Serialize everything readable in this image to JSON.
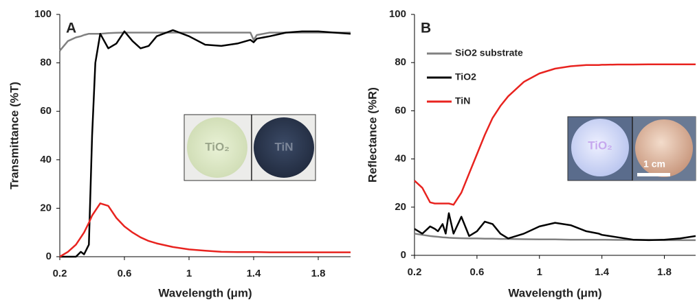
{
  "chart_data": [
    {
      "type": "line",
      "title": "A",
      "x_label": "Wavelength (μm)",
      "y_label": "Transmittance (%T)",
      "x": [
        0.2,
        0.25,
        0.3,
        0.33,
        0.35,
        0.38,
        0.4,
        0.42,
        0.45,
        0.5,
        0.55,
        0.6,
        0.65,
        0.7,
        0.75,
        0.8,
        0.9,
        1.0,
        1.1,
        1.2,
        1.3,
        1.38,
        1.4,
        1.42,
        1.5,
        1.6,
        1.7,
        1.8,
        1.9,
        2.0
      ],
      "series": [
        {
          "color": "#808080",
          "values": [
            85,
            89,
            90.5,
            91,
            91.5,
            92,
            92,
            92,
            92,
            92.3,
            92.4,
            92.5,
            92.5,
            92.5,
            92.5,
            92.5,
            92.5,
            92.5,
            92.5,
            92.5,
            92.5,
            92.5,
            89.5,
            91.5,
            92.5,
            92.5,
            92.5,
            92.5,
            92.5,
            92.5
          ]
        },
        {
          "color": "#000000",
          "values": [
            0,
            0,
            0,
            2,
            1,
            5,
            50,
            80,
            92,
            86,
            88,
            93,
            89,
            86,
            87,
            91,
            93.5,
            91,
            87.5,
            87,
            88,
            89.5,
            88.5,
            90,
            91,
            92.5,
            93,
            93,
            92.5,
            92
          ]
        },
        {
          "color": "#e8231f",
          "values": [
            0,
            2,
            5,
            8,
            10,
            14,
            17,
            19,
            22,
            21,
            16,
            12.5,
            10,
            8,
            6.5,
            5.5,
            4,
            3,
            2.5,
            2,
            1.9,
            1.9,
            1.9,
            1.9,
            1.8,
            1.8,
            1.8,
            1.8,
            1.8,
            1.8
          ]
        }
      ],
      "xlim": [
        0.2,
        2.0
      ],
      "ylim": [
        0,
        100
      ],
      "xticks": [
        0.2,
        0.6,
        1,
        1.4,
        1.8
      ],
      "yticks": [
        0,
        20,
        40,
        60,
        80,
        100
      ],
      "inset_labels": [
        "TiO₂",
        "TiN"
      ]
    },
    {
      "type": "line",
      "title": "B",
      "x_label": "Wavelength (μm)",
      "y_label": "Reflectance (%R)",
      "x": [
        0.2,
        0.25,
        0.3,
        0.33,
        0.35,
        0.38,
        0.4,
        0.42,
        0.45,
        0.5,
        0.55,
        0.6,
        0.65,
        0.7,
        0.75,
        0.8,
        0.9,
        1.0,
        1.1,
        1.2,
        1.3,
        1.38,
        1.4,
        1.42,
        1.5,
        1.6,
        1.7,
        1.8,
        1.9,
        2.0
      ],
      "series": [
        {
          "name": "SiO2 substrate",
          "color": "#808080",
          "values": [
            9,
            8.5,
            8,
            7.8,
            7.7,
            7.5,
            7.4,
            7.3,
            7.2,
            7.1,
            7,
            7,
            6.9,
            6.9,
            6.8,
            6.8,
            6.7,
            6.6,
            6.6,
            6.5,
            6.5,
            6.5,
            6.5,
            6.5,
            6.4,
            6.4,
            6.4,
            6.3,
            6.3,
            6.3
          ]
        },
        {
          "name": "TiO2",
          "color": "#000000",
          "values": [
            11,
            9,
            12,
            11,
            10,
            13,
            9,
            17.5,
            9,
            16,
            8,
            10,
            14,
            13,
            9,
            7,
            9,
            12,
            13.5,
            12.5,
            10,
            9,
            8.5,
            8.3,
            7.5,
            6.5,
            6.3,
            6.5,
            7,
            8
          ]
        },
        {
          "name": "TiN",
          "color": "#e8231f",
          "values": [
            31,
            28,
            22,
            21.5,
            21.5,
            21.5,
            21.5,
            21.5,
            21,
            26,
            34,
            42,
            50,
            57,
            62,
            66,
            72,
            75.5,
            77.5,
            78.5,
            79,
            79,
            79.1,
            79.1,
            79.2,
            79.2,
            79.3,
            79.3,
            79.3,
            79.3
          ]
        }
      ],
      "xlim": [
        0.2,
        2.0
      ],
      "ylim": [
        0,
        100
      ],
      "xticks": [
        0.2,
        0.6,
        1,
        1.4,
        1.8
      ],
      "yticks": [
        0,
        20,
        40,
        60,
        80,
        100
      ],
      "legend": "upper left",
      "inset_labels": [
        "TiO₂",
        "1 cm"
      ]
    }
  ]
}
